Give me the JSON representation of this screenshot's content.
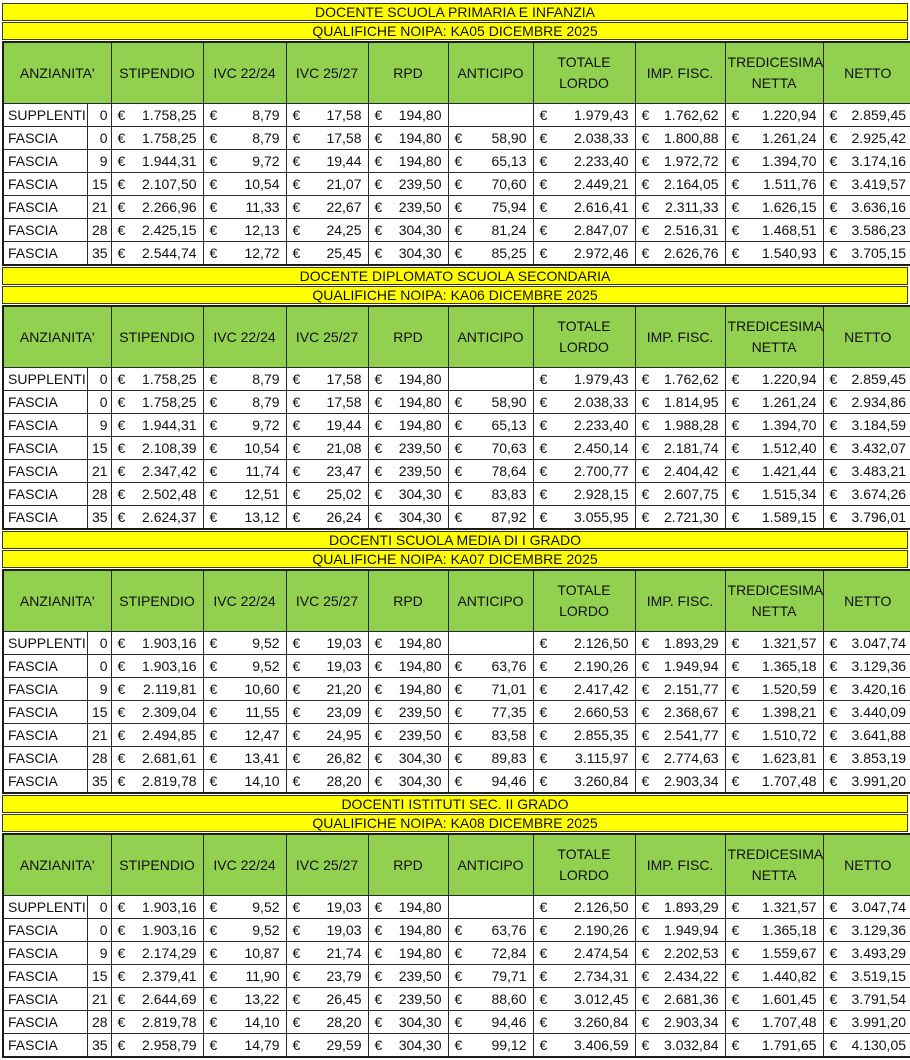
{
  "columns": [
    "ANZIANITA'",
    "STIPENDIO",
    "IVC 22/24",
    "IVC 25/27",
    "RPD",
    "ANTICIPO",
    "TOTALE LORDO",
    "IMP. FISC.",
    "TREDICESIMA NETTA",
    "NETTO"
  ],
  "row_fields": [
    "categoria",
    "anzianita",
    "stipendio",
    "ivc-22-24",
    "ivc-25-27",
    "rpd",
    "anticipo",
    "totale-lordo",
    "imp-fisc",
    "tredicesima-netta",
    "netto"
  ],
  "currency_symbol": "€",
  "colors": {
    "title_bar": "#FFFF00",
    "header_green": "#92D050",
    "category_green": "#DCE8D2",
    "netto_green": "#E9F0E2",
    "border": "#2a2a2a"
  },
  "sections": [
    {
      "title": "DOCENTE SCUOLA PRIMARIA E INFANZIA",
      "subtitle": "QUALIFICHE NOIPA: KA05  DICEMBRE 2025",
      "rows": [
        [
          "SUPPLENTI",
          "0",
          "1.758,25",
          "8,79",
          "17,58",
          "194,80",
          "",
          "1.979,43",
          "1.762,62",
          "1.220,94",
          "2.859,45"
        ],
        [
          "FASCIA",
          "0",
          "1.758,25",
          "8,79",
          "17,58",
          "194,80",
          "58,90",
          "2.038,33",
          "1.800,88",
          "1.261,24",
          "2.925,42"
        ],
        [
          "FASCIA",
          "9",
          "1.944,31",
          "9,72",
          "19,44",
          "194,80",
          "65,13",
          "2.233,40",
          "1.972,72",
          "1.394,70",
          "3.174,16"
        ],
        [
          "FASCIA",
          "15",
          "2.107,50",
          "10,54",
          "21,07",
          "239,50",
          "70,60",
          "2.449,21",
          "2.164,05",
          "1.511,76",
          "3.419,57"
        ],
        [
          "FASCIA",
          "21",
          "2.266,96",
          "11,33",
          "22,67",
          "239,50",
          "75,94",
          "2.616,41",
          "2.311,33",
          "1.626,15",
          "3.636,16"
        ],
        [
          "FASCIA",
          "28",
          "2.425,15",
          "12,13",
          "24,25",
          "304,30",
          "81,24",
          "2.847,07",
          "2.516,31",
          "1.468,51",
          "3.586,23"
        ],
        [
          "FASCIA",
          "35",
          "2.544,74",
          "12,72",
          "25,45",
          "304,30",
          "85,25",
          "2.972,46",
          "2.626,76",
          "1.540,93",
          "3.705,15"
        ]
      ]
    },
    {
      "title": "DOCENTE DIPLOMATO SCUOLA SECONDARIA",
      "subtitle": "QUALIFICHE NOIPA: KA06 DICEMBRE 2025",
      "rows": [
        [
          "SUPPLENTI",
          "0",
          "1.758,25",
          "8,79",
          "17,58",
          "194,80",
          "",
          "1.979,43",
          "1.762,62",
          "1.220,94",
          "2.859,45"
        ],
        [
          "FASCIA",
          "0",
          "1.758,25",
          "8,79",
          "17,58",
          "194,80",
          "58,90",
          "2.038,33",
          "1.814,95",
          "1.261,24",
          "2.934,86"
        ],
        [
          "FASCIA",
          "9",
          "1.944,31",
          "9,72",
          "19,44",
          "194,80",
          "65,13",
          "2.233,40",
          "1.988,28",
          "1.394,70",
          "3.184,59"
        ],
        [
          "FASCIA",
          "15",
          "2.108,39",
          "10,54",
          "21,08",
          "239,50",
          "70,63",
          "2.450,14",
          "2.181,74",
          "1.512,40",
          "3.432,07"
        ],
        [
          "FASCIA",
          "21",
          "2.347,42",
          "11,74",
          "23,47",
          "239,50",
          "78,64",
          "2.700,77",
          "2.404,42",
          "1.421,44",
          "3.483,21"
        ],
        [
          "FASCIA",
          "28",
          "2.502,48",
          "12,51",
          "25,02",
          "304,30",
          "83,83",
          "2.928,15",
          "2.607,75",
          "1.515,34",
          "3.674,26"
        ],
        [
          "FASCIA",
          "35",
          "2.624,37",
          "13,12",
          "26,24",
          "304,30",
          "87,92",
          "3.055,95",
          "2.721,30",
          "1.589,15",
          "3.796,01"
        ]
      ]
    },
    {
      "title": "DOCENTI SCUOLA MEDIA DI I GRADO",
      "subtitle": "QUALIFICHE NOIPA: KA07 DICEMBRE 2025",
      "rows": [
        [
          "SUPPLENTI",
          "0",
          "1.903,16",
          "9,52",
          "19,03",
          "194,80",
          "",
          "2.126,50",
          "1.893,29",
          "1.321,57",
          "3.047,74"
        ],
        [
          "FASCIA",
          "0",
          "1.903,16",
          "9,52",
          "19,03",
          "194,80",
          "63,76",
          "2.190,26",
          "1.949,94",
          "1.365,18",
          "3.129,36"
        ],
        [
          "FASCIA",
          "9",
          "2.119,81",
          "10,60",
          "21,20",
          "194,80",
          "71,01",
          "2.417,42",
          "2.151,77",
          "1.520,59",
          "3.420,16"
        ],
        [
          "FASCIA",
          "15",
          "2.309,04",
          "11,55",
          "23,09",
          "239,50",
          "77,35",
          "2.660,53",
          "2.368,67",
          "1.398,21",
          "3.440,09"
        ],
        [
          "FASCIA",
          "21",
          "2.494,85",
          "12,47",
          "24,95",
          "239,50",
          "83,58",
          "2.855,35",
          "2.541,77",
          "1.510,72",
          "3.641,88"
        ],
        [
          "FASCIA",
          "28",
          "2.681,61",
          "13,41",
          "26,82",
          "304,30",
          "89,83",
          "3.115,97",
          "2.774,63",
          "1.623,81",
          "3.853,19"
        ],
        [
          "FASCIA",
          "35",
          "2.819,78",
          "14,10",
          "28,20",
          "304,30",
          "94,46",
          "3.260,84",
          "2.903,34",
          "1.707,48",
          "3.991,20"
        ]
      ]
    },
    {
      "title": "DOCENTI ISTITUTI SEC. II GRADO",
      "subtitle": "QUALIFICHE NOIPA: KA08 DICEMBRE 2025",
      "rows": [
        [
          "SUPPLENTI",
          "0",
          "1.903,16",
          "9,52",
          "19,03",
          "194,80",
          "",
          "2.126,50",
          "1.893,29",
          "1.321,57",
          "3.047,74"
        ],
        [
          "FASCIA",
          "0",
          "1.903,16",
          "9,52",
          "19,03",
          "194,80",
          "63,76",
          "2.190,26",
          "1.949,94",
          "1.365,18",
          "3.129,36"
        ],
        [
          "FASCIA",
          "9",
          "2.174,29",
          "10,87",
          "21,74",
          "194,80",
          "72,84",
          "2.474,54",
          "2.202,53",
          "1.559,67",
          "3.493,29"
        ],
        [
          "FASCIA",
          "15",
          "2.379,41",
          "11,90",
          "23,79",
          "239,50",
          "79,71",
          "2.734,31",
          "2.434,22",
          "1.440,82",
          "3.519,15"
        ],
        [
          "FASCIA",
          "21",
          "2.644,69",
          "13,22",
          "26,45",
          "239,50",
          "88,60",
          "3.012,45",
          "2.681,36",
          "1.601,45",
          "3.791,54"
        ],
        [
          "FASCIA",
          "28",
          "2.819,78",
          "14,10",
          "28,20",
          "304,30",
          "94,46",
          "3.260,84",
          "2.903,34",
          "1.707,48",
          "3.991,20"
        ],
        [
          "FASCIA",
          "35",
          "2.958,79",
          "14,79",
          "29,59",
          "304,30",
          "99,12",
          "3.406,59",
          "3.032,84",
          "1.791,65",
          "4.130,05"
        ]
      ]
    }
  ]
}
